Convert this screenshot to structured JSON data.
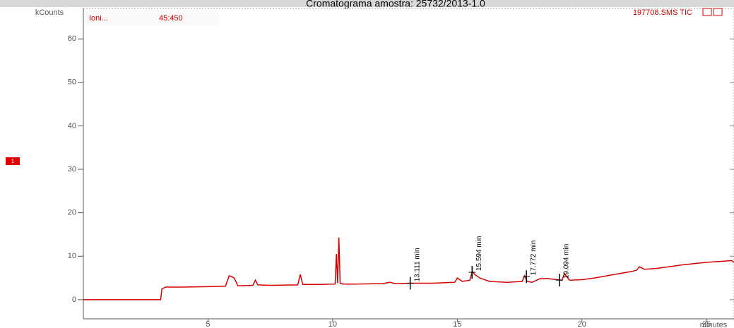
{
  "chart_data": {
    "type": "line",
    "title": "Cromatograma amostra: 25732/2013-1.0",
    "xlabel": "minutes",
    "ylabel": "kCounts",
    "info": [
      "Ioni...",
      "45:450"
    ],
    "trace_label": "197708.SMS TIC",
    "marker_label": "1",
    "x": [
      0,
      3.1,
      3.15,
      3.3,
      4,
      5,
      5.7,
      5.85,
      5.95,
      6.05,
      6.2,
      6.8,
      6.9,
      7.0,
      7.5,
      8.6,
      8.7,
      8.8,
      9.5,
      10.1,
      10.15,
      10.2,
      10.25,
      10.3,
      10.4,
      11,
      12,
      12.3,
      12.5,
      13.1,
      14,
      14.9,
      15.0,
      15.2,
      15.5,
      15.6,
      15.7,
      15.9,
      16.3,
      17,
      17.6,
      17.7,
      17.8,
      18.0,
      18.3,
      18.6,
      19.0,
      19.2,
      19.3,
      19.5,
      20,
      20.5,
      21,
      21.5,
      22,
      22.2,
      22.3,
      22.5,
      23,
      23.5,
      24,
      24.5,
      25,
      25.5,
      26,
      26.1
    ],
    "series": [
      {
        "name": "197708.SMS TIC",
        "color": "#d40000",
        "values": [
          0,
          0,
          2.5,
          2.9,
          2.9,
          3.0,
          3.1,
          5.5,
          5.3,
          5.0,
          3.2,
          3.3,
          4.5,
          3.4,
          3.3,
          3.4,
          5.8,
          3.5,
          3.5,
          3.6,
          10.5,
          3.8,
          14.3,
          3.8,
          3.6,
          3.6,
          3.7,
          4.0,
          3.7,
          3.8,
          3.8,
          4.0,
          5.0,
          4.2,
          4.5,
          6.5,
          5.8,
          5.0,
          4.2,
          4.0,
          4.2,
          5.5,
          4.2,
          4.0,
          4.8,
          4.9,
          4.6,
          4.5,
          6.0,
          4.5,
          4.6,
          5.0,
          5.5,
          6.0,
          6.5,
          6.8,
          7.6,
          7.0,
          7.2,
          7.6,
          8.0,
          8.3,
          8.6,
          8.8,
          9.0,
          8.6
        ]
      }
    ],
    "annotations": [
      {
        "text": "13.111 min",
        "x": 13.111,
        "y": 3.8
      },
      {
        "text": "15.594 min",
        "x": 15.594,
        "y": 6.3
      },
      {
        "text": "17.772 min",
        "x": 17.772,
        "y": 5.3
      },
      {
        "text": "19.094 min",
        "x": 19.094,
        "y": 4.5
      }
    ],
    "xlim": [
      0,
      26.1
    ],
    "ylim": [
      -4.4,
      67
    ],
    "xticks": [
      5,
      10,
      15,
      20,
      25
    ],
    "yticks": [
      0,
      10,
      20,
      30,
      40,
      50,
      60
    ]
  }
}
